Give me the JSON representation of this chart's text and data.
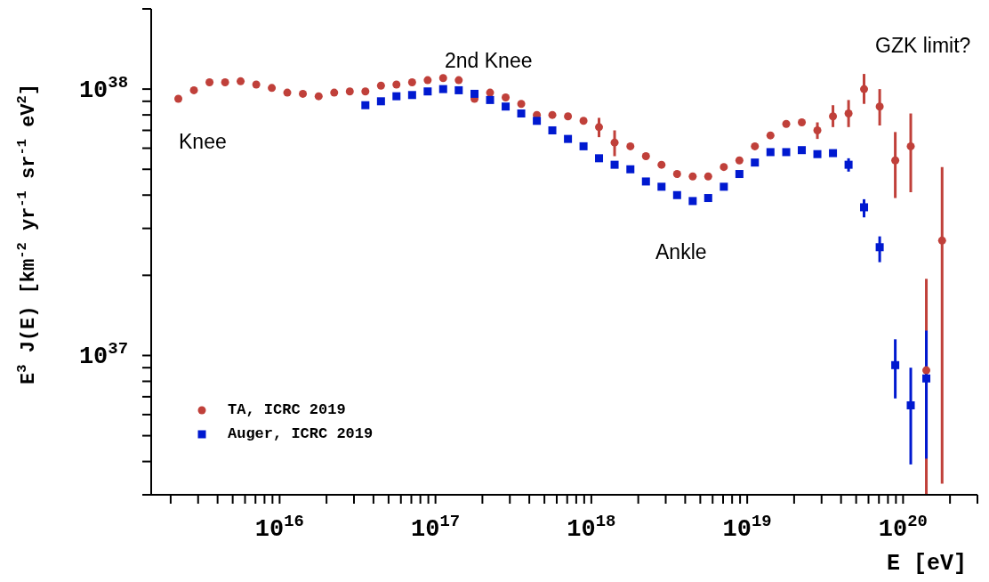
{
  "chart_data": {
    "type": "scatter",
    "xlabel": "E [eV]",
    "ylabel": "E$^{3}$ J(E) [km$^{-2}$ yr$^{-1}$ sr$^{-1}$ eV$^{2}$]",
    "log": "xy",
    "legend": "bottom left",
    "grid": false,
    "xlim": [
      1500000000000000.0,
      3e+20
    ],
    "ylim": [
      3e+36,
      2e+38
    ],
    "xticks": [
      {
        "value": 2000000000000000.0,
        "label": null
      },
      {
        "value": 3000000000000000.0,
        "label": null
      },
      {
        "value": 4000000000000000.0,
        "label": null
      },
      {
        "value": 5000000000000000.0,
        "label": null
      },
      {
        "value": 6000000000000000.0,
        "label": null
      },
      {
        "value": 7000000000000000.0,
        "label": null
      },
      {
        "value": 8000000000000000.0,
        "label": null
      },
      {
        "value": 9000000000000000.0,
        "label": null
      },
      {
        "value": 1e+16,
        "label": "10$^{16}$"
      },
      {
        "value": 2e+16,
        "label": null
      },
      {
        "value": 3e+16,
        "label": null
      },
      {
        "value": 4e+16,
        "label": null
      },
      {
        "value": 5e+16,
        "label": null
      },
      {
        "value": 6e+16,
        "label": null
      },
      {
        "value": 7e+16,
        "label": null
      },
      {
        "value": 8e+16,
        "label": null
      },
      {
        "value": 9e+16,
        "label": null
      },
      {
        "value": 1e+17,
        "label": "10$^{17}$"
      },
      {
        "value": 2e+17,
        "label": null
      },
      {
        "value": 3e+17,
        "label": null
      },
      {
        "value": 4e+17,
        "label": null
      },
      {
        "value": 5e+17,
        "label": null
      },
      {
        "value": 6e+17,
        "label": null
      },
      {
        "value": 7e+17,
        "label": null
      },
      {
        "value": 8e+17,
        "label": null
      },
      {
        "value": 9e+17,
        "label": null
      },
      {
        "value": 1e+18,
        "label": "10$^{18}$"
      },
      {
        "value": 2e+18,
        "label": null
      },
      {
        "value": 3e+18,
        "label": null
      },
      {
        "value": 4e+18,
        "label": null
      },
      {
        "value": 5e+18,
        "label": null
      },
      {
        "value": 6e+18,
        "label": null
      },
      {
        "value": 7e+18,
        "label": null
      },
      {
        "value": 8e+18,
        "label": null
      },
      {
        "value": 9e+18,
        "label": null
      },
      {
        "value": 1e+19,
        "label": "10$^{19}$"
      },
      {
        "value": 2e+19,
        "label": null
      },
      {
        "value": 3e+19,
        "label": null
      },
      {
        "value": 4e+19,
        "label": null
      },
      {
        "value": 5e+19,
        "label": null
      },
      {
        "value": 6e+19,
        "label": null
      },
      {
        "value": 7e+19,
        "label": null
      },
      {
        "value": 8e+19,
        "label": null
      },
      {
        "value": 9e+19,
        "label": null
      },
      {
        "value": 1e+20,
        "label": "10$^{20}$"
      },
      {
        "value": 2e+20,
        "label": null
      },
      {
        "value": 3e+20,
        "label": null
      }
    ],
    "yticks": [
      {
        "value": 3e+36,
        "label": null
      },
      {
        "value": 4e+36,
        "label": null
      },
      {
        "value": 5e+36,
        "label": null
      },
      {
        "value": 6e+36,
        "label": null
      },
      {
        "value": 7e+36,
        "label": null
      },
      {
        "value": 8e+36,
        "label": null
      },
      {
        "value": 9e+36,
        "label": null
      },
      {
        "value": 1e+37,
        "label": "10$^{37}$"
      },
      {
        "value": 2e+37,
        "label": null
      },
      {
        "value": 3e+37,
        "label": null
      },
      {
        "value": 4e+37,
        "label": null
      },
      {
        "value": 5e+37,
        "label": null
      },
      {
        "value": 6e+37,
        "label": null
      },
      {
        "value": 7e+37,
        "label": null
      },
      {
        "value": 8e+37,
        "label": null
      },
      {
        "value": 9e+37,
        "label": null
      },
      {
        "value": 1e+38,
        "label": "10$^{38}$"
      },
      {
        "value": 2e+38,
        "label": null
      }
    ],
    "annotations": [
      "Knee",
      "2nd Knee",
      "Ankle",
      "GZK limit?"
    ],
    "series": [
      {
        "name": "TA, ICRC 2019",
        "color": "#c0403a",
        "marker": "circle",
        "x": [
          2240000000000000.0,
          2820000000000000.0,
          3550000000000000.0,
          4470000000000000.0,
          5620000000000000.0,
          7080000000000000.0,
          8910000000000000.0,
          1.12e+16,
          1.41e+16,
          1.78e+16,
          2.24e+16,
          2.82e+16,
          3.55e+16,
          4.47e+16,
          5.62e+16,
          7.08e+16,
          8.91e+16,
          1.12e+17,
          1.41e+17,
          1.78e+17,
          2.24e+17,
          2.82e+17,
          3.55e+17,
          4.47e+17,
          5.62e+17,
          7.08e+17,
          8.91e+17,
          1.12e+18,
          1.41e+18,
          1.78e+18,
          2.24e+18,
          2.82e+18,
          3.55e+18,
          4.47e+18,
          5.62e+18,
          7.08e+18,
          8.91e+18,
          1.12e+19,
          1.41e+19,
          1.78e+19,
          2.24e+19,
          2.82e+19,
          3.55e+19,
          4.47e+19,
          5.62e+19,
          7.08e+19,
          8.91e+19,
          1.12e+20,
          1.41e+20,
          1.78e+20
        ],
        "values": [
          9.2e+37,
          9.9e+37,
          1.06e+38,
          1.06e+38,
          1.07e+38,
          1.04e+38,
          1.01e+38,
          9.7e+37,
          9.6e+37,
          9.4e+37,
          9.7e+37,
          9.8e+37,
          9.8e+37,
          1.03e+38,
          1.04e+38,
          1.06e+38,
          1.08e+38,
          1.1e+38,
          1.08e+38,
          9.2e+37,
          9.7e+37,
          9.3e+37,
          8.8e+37,
          8e+37,
          8e+37,
          7.9e+37,
          7.6e+37,
          7.2e+37,
          6.3e+37,
          6.1e+37,
          5.6e+37,
          5.2e+37,
          4.8e+37,
          4.7e+37,
          4.7e+37,
          5.1e+37,
          5.4e+37,
          6.1e+37,
          6.7e+37,
          7.4e+37,
          7.5e+37,
          7e+37,
          7.9e+37,
          8.1e+37,
          1e+38,
          8.6e+37,
          5.4e+37,
          6.1e+37,
          8.8e+36,
          2.7e+37
        ],
        "errors": [
          null,
          null,
          null,
          null,
          null,
          null,
          null,
          null,
          null,
          null,
          null,
          null,
          null,
          null,
          null,
          null,
          null,
          null,
          null,
          null,
          null,
          null,
          null,
          null,
          null,
          null,
          null,
          [
            6.6e+37,
            7.8e+37
          ],
          [
            5.6e+37,
            7e+37
          ],
          null,
          null,
          null,
          null,
          null,
          null,
          null,
          null,
          null,
          null,
          null,
          null,
          [
            6.5e+37,
            7.5e+37
          ],
          [
            7.2e+37,
            8.7e+37
          ],
          [
            7.2e+37,
            9.1e+37
          ],
          [
            8.8e+37,
            1.14e+38
          ],
          [
            7.3e+37,
            1e+38
          ],
          [
            3.9e+37,
            6.9e+37
          ],
          [
            4.1e+37,
            8.1e+37
          ],
          [
            3e+36,
            1.94e+37
          ],
          [
            3.3e+36,
            5.1e+37
          ]
        ]
      },
      {
        "name": "Auger, ICRC 2019",
        "color": "#0019d0",
        "marker": "square",
        "x": [
          3.55e+16,
          4.47e+16,
          5.62e+16,
          7.08e+16,
          8.91e+16,
          1.12e+17,
          1.41e+17,
          1.78e+17,
          2.24e+17,
          2.82e+17,
          3.55e+17,
          4.47e+17,
          5.62e+17,
          7.08e+17,
          8.91e+17,
          1.12e+18,
          1.41e+18,
          1.78e+18,
          2.24e+18,
          2.82e+18,
          3.55e+18,
          4.47e+18,
          5.62e+18,
          7.08e+18,
          8.91e+18,
          1.12e+19,
          1.41e+19,
          1.78e+19,
          2.24e+19,
          2.82e+19,
          3.55e+19,
          4.47e+19,
          5.62e+19,
          7.08e+19,
          8.91e+19,
          1.12e+20,
          1.41e+20
        ],
        "values": [
          8.7e+37,
          9e+37,
          9.4e+37,
          9.5e+37,
          9.8e+37,
          1e+38,
          9.9e+37,
          9.6e+37,
          9.1e+37,
          8.6e+37,
          8.1e+37,
          7.6e+37,
          7e+37,
          6.5e+37,
          6.1e+37,
          5.5e+37,
          5.2e+37,
          5e+37,
          4.5e+37,
          4.3e+37,
          4e+37,
          3.8e+37,
          3.9e+37,
          4.3e+37,
          4.8e+37,
          5.3e+37,
          5.8e+37,
          5.8e+37,
          5.9e+37,
          5.7e+37,
          5.75e+37,
          5.2e+37,
          3.6e+37,
          2.55e+37,
          9.2e+36,
          6.5e+36,
          8.2e+36
        ],
        "errors": [
          null,
          null,
          null,
          null,
          null,
          null,
          null,
          null,
          null,
          null,
          null,
          null,
          null,
          null,
          null,
          null,
          null,
          null,
          null,
          null,
          null,
          null,
          null,
          null,
          null,
          null,
          null,
          null,
          null,
          null,
          null,
          [
            4.9e+37,
            5.5e+37
          ],
          [
            3.3e+37,
            3.86e+37
          ],
          [
            2.24e+37,
            2.8e+37
          ],
          [
            6.9e+36,
            1.15e+37
          ],
          [
            3.9e+36,
            9e+36
          ],
          [
            4.1e+36,
            1.24e+37
          ]
        ]
      }
    ]
  }
}
